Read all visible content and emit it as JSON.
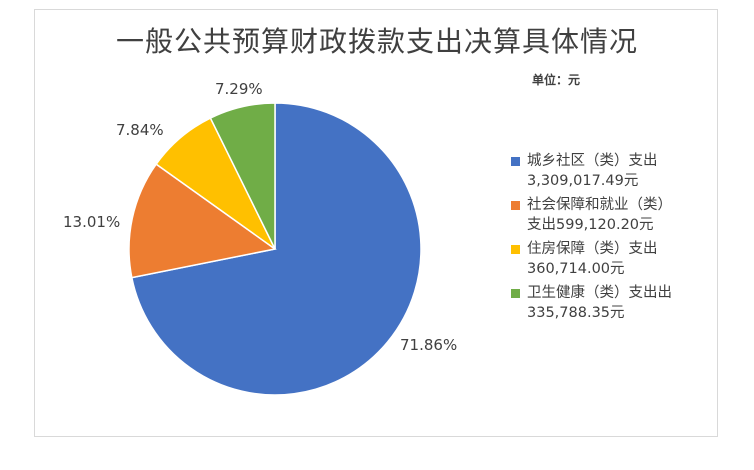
{
  "chart_data": {
    "type": "pie",
    "title": "一般公共预算财政拨款支出决算具体情况",
    "unit_label": "单位：元",
    "slices": [
      {
        "name_line1": "城乡社区（类）支出",
        "name_line2": "3,309,017.49元",
        "percent_label": "71.86%",
        "percent": 71.86,
        "color": "#4472C4"
      },
      {
        "name_line1": "社会保障和就业（类）",
        "name_line2": "支出599,120.20元",
        "percent_label": "13.01%",
        "percent": 13.01,
        "color": "#ED7D31"
      },
      {
        "name_line1": "住房保障（类）支出",
        "name_line2": "360,714.00元",
        "percent_label": "7.84%",
        "percent": 7.84,
        "color": "#FFC000"
      },
      {
        "name_line1": "卫生健康（类）支出出",
        "name_line2": "335,788.35元",
        "percent_label": "7.29%",
        "percent": 7.29,
        "color": "#70AD47"
      }
    ],
    "legend_position": "right"
  }
}
